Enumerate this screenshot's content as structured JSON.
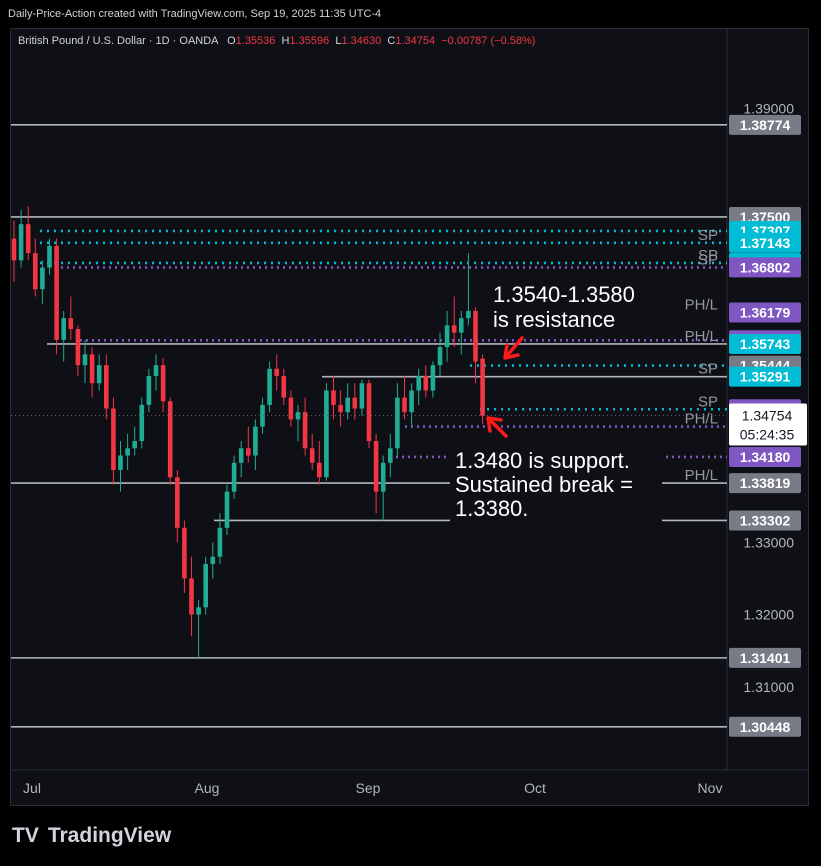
{
  "header": {
    "attribution": "Daily-Price-Action created with TradingView.com, Sep 19, 2025 11:35 UTC-4"
  },
  "legend": {
    "symbol": "British Pound / U.S. Dollar · 1D · OANDA",
    "o_label": "O",
    "o": "1.35536",
    "h_label": "H",
    "h": "1.35596",
    "l_label": "L",
    "l": "1.34630",
    "c_label": "C",
    "c": "1.34754",
    "change": "−0.00787 (−0.58%)"
  },
  "footer": {
    "brand": "TradingView"
  },
  "colors": {
    "up": "#22ab94",
    "down": "#f23645",
    "level": "#b2b5be",
    "purple": "#7e57c2",
    "teal": "#00bcd4",
    "gray_tag": "#787b86"
  },
  "chart_data": {
    "type": "candlestick",
    "symbol": "British Pound / U.S. Dollar",
    "interval": "1D",
    "broker": "OANDA",
    "x_ticks": [
      "Jul",
      "Aug",
      "Sep",
      "Oct",
      "Nov"
    ],
    "y_ticks": [
      "1.39000",
      "1.33000",
      "1.32000",
      "1.31000"
    ],
    "ylim": [
      1.2985,
      1.401
    ],
    "grid": false,
    "last_price": "1.34754",
    "countdown": "05:24:35",
    "candles": [
      [
        1.372,
        1.3745,
        1.366,
        1.369
      ],
      [
        1.369,
        1.376,
        1.368,
        1.374
      ],
      [
        1.374,
        1.3765,
        1.369,
        1.37
      ],
      [
        1.37,
        1.372,
        1.364,
        1.365
      ],
      [
        1.365,
        1.369,
        1.363,
        1.368
      ],
      [
        1.368,
        1.372,
        1.367,
        1.371
      ],
      [
        1.371,
        1.372,
        1.356,
        1.358
      ],
      [
        1.358,
        1.362,
        1.355,
        1.361
      ],
      [
        1.361,
        1.364,
        1.358,
        1.3595
      ],
      [
        1.3595,
        1.36,
        1.353,
        1.3545
      ],
      [
        1.3545,
        1.358,
        1.352,
        1.356
      ],
      [
        1.356,
        1.357,
        1.35,
        1.352
      ],
      [
        1.352,
        1.356,
        1.351,
        1.3545
      ],
      [
        1.3545,
        1.356,
        1.347,
        1.3485
      ],
      [
        1.3485,
        1.35,
        1.338,
        1.34
      ],
      [
        1.34,
        1.344,
        1.337,
        1.342
      ],
      [
        1.342,
        1.345,
        1.34,
        1.343
      ],
      [
        1.343,
        1.346,
        1.342,
        1.344
      ],
      [
        1.344,
        1.35,
        1.343,
        1.349
      ],
      [
        1.349,
        1.354,
        1.348,
        1.353
      ],
      [
        1.353,
        1.356,
        1.351,
        1.3545
      ],
      [
        1.3545,
        1.3555,
        1.348,
        1.3495
      ],
      [
        1.3495,
        1.35,
        1.338,
        1.339
      ],
      [
        1.339,
        1.34,
        1.33,
        1.332
      ],
      [
        1.332,
        1.333,
        1.323,
        1.325
      ],
      [
        1.325,
        1.328,
        1.317,
        1.32
      ],
      [
        1.32,
        1.322,
        1.314,
        1.321
      ],
      [
        1.321,
        1.328,
        1.32,
        1.327
      ],
      [
        1.327,
        1.33,
        1.325,
        1.328
      ],
      [
        1.328,
        1.334,
        1.327,
        1.332
      ],
      [
        1.332,
        1.338,
        1.331,
        1.337
      ],
      [
        1.337,
        1.342,
        1.336,
        1.341
      ],
      [
        1.341,
        1.344,
        1.339,
        1.343
      ],
      [
        1.343,
        1.346,
        1.341,
        1.342
      ],
      [
        1.342,
        1.347,
        1.34,
        1.346
      ],
      [
        1.346,
        1.35,
        1.345,
        1.349
      ],
      [
        1.349,
        1.355,
        1.348,
        1.354
      ],
      [
        1.354,
        1.356,
        1.351,
        1.353
      ],
      [
        1.353,
        1.354,
        1.349,
        1.35
      ],
      [
        1.35,
        1.351,
        1.346,
        1.347
      ],
      [
        1.347,
        1.349,
        1.344,
        1.348
      ],
      [
        1.348,
        1.35,
        1.342,
        1.343
      ],
      [
        1.343,
        1.345,
        1.34,
        1.341
      ],
      [
        1.341,
        1.344,
        1.338,
        1.339
      ],
      [
        1.339,
        1.352,
        1.3385,
        1.351
      ],
      [
        1.351,
        1.353,
        1.347,
        1.349
      ],
      [
        1.349,
        1.351,
        1.346,
        1.348
      ],
      [
        1.348,
        1.352,
        1.347,
        1.35
      ],
      [
        1.35,
        1.352,
        1.347,
        1.3485
      ],
      [
        1.3485,
        1.3525,
        1.3475,
        1.352
      ],
      [
        1.352,
        1.3525,
        1.343,
        1.344
      ],
      [
        1.344,
        1.345,
        1.334,
        1.337
      ],
      [
        1.337,
        1.342,
        1.333,
        1.341
      ],
      [
        1.341,
        1.345,
        1.339,
        1.343
      ],
      [
        1.343,
        1.352,
        1.342,
        1.35
      ],
      [
        1.35,
        1.353,
        1.347,
        1.348
      ],
      [
        1.348,
        1.352,
        1.346,
        1.351
      ],
      [
        1.351,
        1.354,
        1.349,
        1.353
      ],
      [
        1.353,
        1.3545,
        1.35,
        1.351
      ],
      [
        1.351,
        1.355,
        1.35,
        1.3545
      ],
      [
        1.3545,
        1.359,
        1.353,
        1.357
      ],
      [
        1.357,
        1.362,
        1.355,
        1.36
      ],
      [
        1.36,
        1.364,
        1.357,
        1.359
      ],
      [
        1.359,
        1.362,
        1.356,
        1.361
      ],
      [
        1.361,
        1.37,
        1.36,
        1.362
      ],
      [
        1.362,
        1.3625,
        1.352,
        1.355
      ],
      [
        1.3554,
        1.356,
        1.3463,
        1.3475
      ]
    ],
    "levels": [
      {
        "price": 1.38774,
        "style": "solid",
        "tag": "1.38774"
      },
      {
        "price": 1.375,
        "style": "solid",
        "tag": "1.37500"
      },
      {
        "price": 1.37307,
        "style": "teal-dotted",
        "tag": "1.37307"
      },
      {
        "price": 1.37143,
        "style": "teal-dotted",
        "tag": "1.37143",
        "label": "SP"
      },
      {
        "price": 1.36864,
        "style": "teal-dotted",
        "tag": "1.36864",
        "label": "SP"
      },
      {
        "price": 1.36802,
        "style": "purple-dotted",
        "tag": "1.36802",
        "label": "SP"
      },
      {
        "price": 1.36179,
        "style": "none",
        "tag": "1.36179",
        "label": "PH/L"
      },
      {
        "price": 1.35794,
        "style": "purple-dotted",
        "tag": "1.35794"
      },
      {
        "price": 1.35743,
        "style": "solid",
        "tag": "1.35743",
        "label": "PH/L"
      },
      {
        "price": 1.35444,
        "style": "teal-dotted",
        "tag": "1.35444"
      },
      {
        "price": 1.35291,
        "style": "solid",
        "tag": "1.35291",
        "label": "SP"
      },
      {
        "price": 1.3484,
        "style": "teal-dotted",
        "tag": "1.34840",
        "label": "SP"
      },
      {
        "price": 1.346,
        "style": "purple-dotted",
        "label": "PH/L"
      },
      {
        "price": 1.3418,
        "style": "purple-dotted",
        "tag": "1.34180"
      },
      {
        "price": 1.33819,
        "style": "solid",
        "tag": "1.33819",
        "label": "PH/L"
      },
      {
        "price": 1.33302,
        "style": "solid",
        "tag": "1.33302"
      },
      {
        "price": 1.31401,
        "style": "solid",
        "tag": "1.31401"
      },
      {
        "price": 1.30448,
        "style": "solid",
        "tag": "1.30448"
      }
    ],
    "annotations": [
      {
        "lines": [
          "1.3540-1.3580",
          "is resistance"
        ]
      },
      {
        "lines": [
          "1.3480 is support.",
          "Sustained break =",
          "1.3380."
        ]
      }
    ]
  }
}
